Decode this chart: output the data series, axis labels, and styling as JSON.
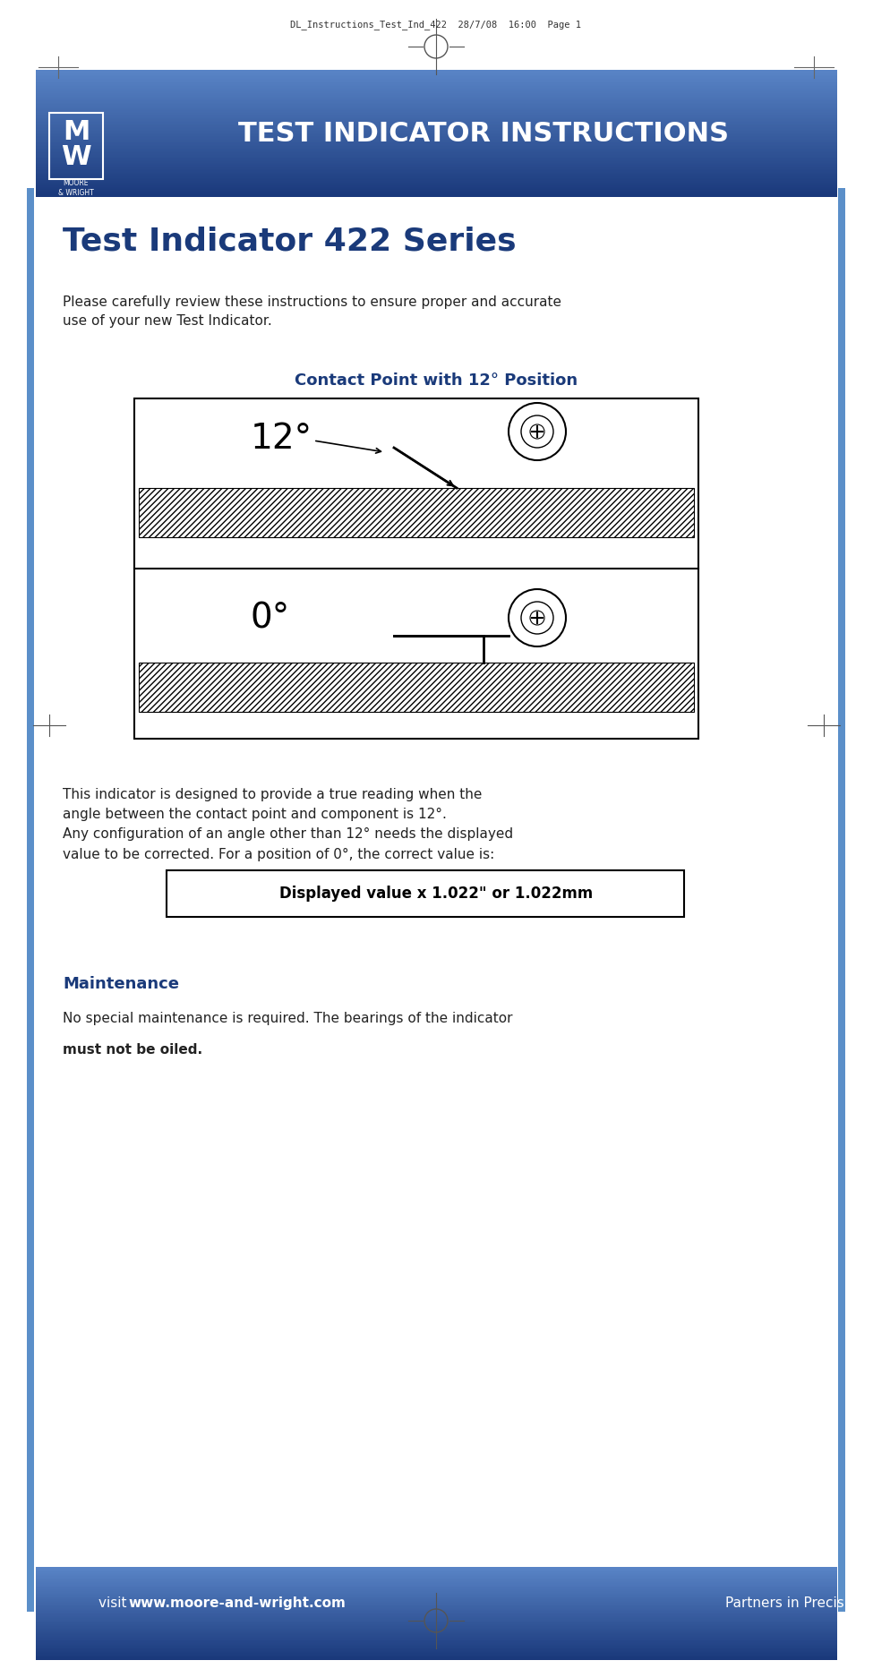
{
  "page_bg": "#ffffff",
  "header_top_text": "DL_Instructions_Test_Ind_422  28/7/08  16:00  Page 1",
  "header_bg_color1": "#1a3a7a",
  "header_bg_color2": "#5b8fc9",
  "header_title": "TEST INDICATOR INSTRUCTIONS",
  "header_title_color": "#ffffff",
  "main_title": "Test Indicator 422 Series",
  "main_title_color": "#1a3a7a",
  "intro_text": "Please carefully review these instructions to ensure proper and accurate\nuse of your new Test Indicator.",
  "diagram_title": "Contact Point with 12° Position",
  "diagram_title_color": "#1a3a7a",
  "body_text": "This indicator is designed to provide a true reading when the\nangle between the contact point and component is 12°.\nAny configuration of an angle other than 12° needs the displayed\nvalue to be corrected. For a position of 0°, the correct value is:",
  "formula_box_text": "Displayed value x 1.022\" or 1.022mm",
  "formula_box_border": "#000000",
  "maintenance_title": "Maintenance",
  "maintenance_title_color": "#1a3a7a",
  "maintenance_text_normal": "No special maintenance is required. The bearings of the indicator\n",
  "maintenance_text_bold": "must not be oiled",
  "maintenance_text_end": ".",
  "footer_bg_color1": "#1a3a7a",
  "footer_bg_color2": "#5b8fc9",
  "footer_visit_text": "visit ",
  "footer_url": "www.moore-and-wright.com",
  "footer_right_text": "Partners in Precision",
  "footer_text_color": "#ffffff",
  "border_line_color": "#5b8fc9",
  "crosshair_color": "#000000",
  "hatch_color": "#000000"
}
